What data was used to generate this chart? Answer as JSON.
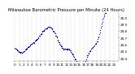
{
  "title": "Milwaukee Barometric Pressure per Minute (24 Hours)",
  "title_fontsize": 3.8,
  "dot_color": "#0000cc",
  "dot_size": 0.8,
  "bg_color": "#ffffff",
  "grid_color": "#aaaaaa",
  "tick_color": "#000000",
  "tick_fontsize": 3.0,
  "ylim": [
    29.35,
    30.08
  ],
  "yticks": [
    29.4,
    29.5,
    29.6,
    29.7,
    29.8,
    29.9,
    30.0
  ],
  "xlim": [
    -0.3,
    24.2
  ],
  "noise_seed": 42,
  "noise_scale": 0.006
}
